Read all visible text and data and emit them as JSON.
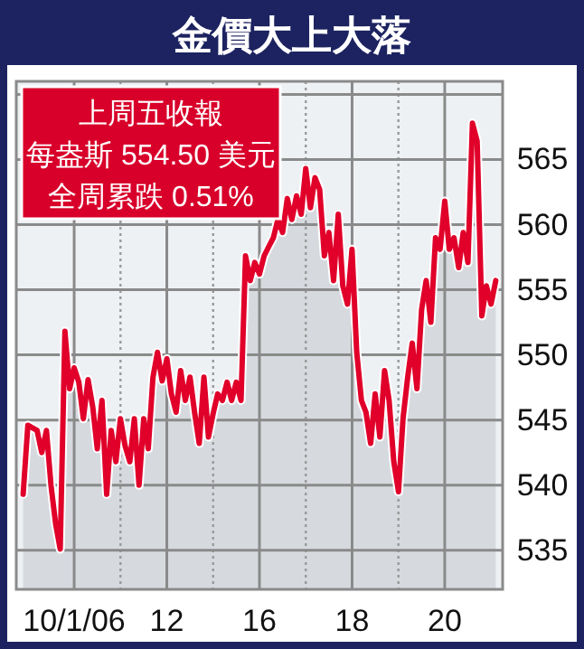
{
  "chart_data": {
    "type": "area",
    "title": "金價大上大落",
    "annotations": [
      "上周五收報",
      "每盎斯 554.50 美元",
      "全周累跌 0.51%"
    ],
    "categories": [
      null,
      null,
      null,
      null,
      null,
      null,
      null,
      null,
      null,
      null,
      null,
      null,
      "10/1/06",
      null,
      null,
      null,
      null,
      null,
      null,
      null,
      null,
      null,
      null,
      null,
      null,
      null,
      null,
      null,
      null,
      null,
      null,
      null,
      "12",
      null,
      null,
      null,
      null,
      null,
      null,
      null,
      null,
      null,
      null,
      null,
      null,
      null,
      null,
      null,
      null,
      null,
      null,
      null,
      "16",
      null,
      null,
      null,
      null,
      null,
      null,
      null,
      null,
      null,
      null,
      null,
      null,
      null,
      null,
      null,
      null,
      null,
      null,
      null,
      "18",
      null,
      null,
      null,
      null,
      null,
      null,
      null,
      null,
      null,
      null,
      null,
      null,
      null,
      null,
      null,
      null,
      null,
      null,
      null,
      "20",
      null,
      null,
      null,
      null,
      null,
      null,
      null,
      null,
      null,
      null,
      null,
      null
    ],
    "ylim": [
      532,
      571
    ],
    "yticks": [
      535,
      540,
      545,
      550,
      555,
      560,
      565,
      {
        "value": 570,
        "label": null
      }
    ],
    "grid": true,
    "series": [
      {
        "color": "#e0002a",
        "values": [
          null,
          539.3,
          544.6,
          544.4,
          544.2,
          542.5,
          544.2,
          540,
          537,
          535.1,
          551.8,
          547.4,
          549,
          547.9,
          545.1,
          548.1,
          546,
          542.8,
          546.5,
          539.3,
          544.2,
          541.8,
          545.1,
          543,
          541.8,
          545.1,
          540,
          545.1,
          542.8,
          548.3,
          550.2,
          548,
          549.7,
          547,
          545.6,
          548.8,
          546.5,
          548.3,
          545.6,
          543.2,
          548.3,
          543.7,
          545.5,
          547,
          546.5,
          547.9,
          546.5,
          547.9,
          546.5,
          557.6,
          555.7,
          557.1,
          556.2,
          557.6,
          558.3,
          559,
          560.4,
          559.4,
          562,
          560.4,
          562.2,
          560.8,
          564.3,
          561.3,
          563.6,
          562.7,
          557.6,
          559.4,
          555.7,
          560.8,
          555.3,
          553.9,
          558.1,
          550.2,
          546.5,
          545.6,
          543.2,
          547,
          543.7,
          548.8,
          546.5,
          541.8,
          539.5,
          545.1,
          548.3,
          550.9,
          547.4,
          553.5,
          555.7,
          552.5,
          559,
          558.1,
          561.8,
          558.1,
          559,
          556.7,
          559.4,
          557.1,
          567.8,
          566.4,
          553,
          555.3,
          553.9,
          555.7,
          null
        ]
      }
    ]
  }
}
